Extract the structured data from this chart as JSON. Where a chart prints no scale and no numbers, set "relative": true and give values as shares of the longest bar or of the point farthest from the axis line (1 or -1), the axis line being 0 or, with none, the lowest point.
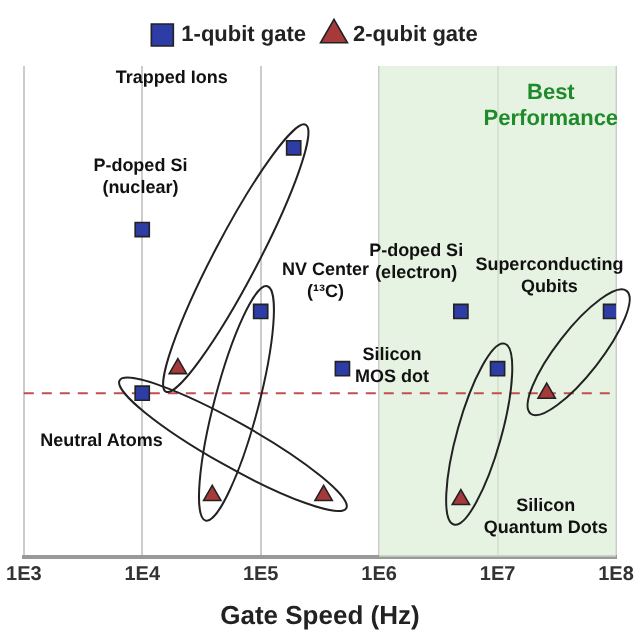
{
  "chart_data": {
    "type": "scatter",
    "relative": true,
    "xlabel": "Gate Speed (Hz)",
    "log": "x",
    "grid": "x",
    "legend": "top",
    "xlim": [
      1000,
      100000000
    ],
    "xticks": [
      {
        "value": 1000,
        "label": "1E3"
      },
      {
        "value": 10000,
        "label": "1E4"
      },
      {
        "value": 100000,
        "label": "1E5"
      },
      {
        "value": 1000000,
        "label": "1E6"
      },
      {
        "value": 10000000,
        "label": "1E7"
      },
      {
        "value": 100000000,
        "label": "1E8"
      }
    ],
    "series": [
      {
        "name": "1-qubit gate",
        "color": "#2e3da6",
        "marker": "square",
        "x": [
          190000,
          100000,
          10000,
          10000000,
          90000000,
          10000,
          490000,
          4900000
        ],
        "values": [
          1.0,
          0.6,
          0.4,
          0.46,
          0.6,
          0.8,
          0.46,
          0.6
        ]
      },
      {
        "name": "2-qubit gate",
        "color": "#a63a3a",
        "marker": "triangle",
        "x": [
          20000,
          39000,
          340000,
          4900000,
          26000000
        ],
        "values": [
          0.46,
          0.15,
          0.15,
          0.14,
          0.4
        ]
      }
    ],
    "ref_lines": [
      {
        "axis": "y",
        "value": 0.4,
        "color": "#c0504d",
        "line_style": "dashed"
      }
    ],
    "bands": [
      {
        "axis": "x",
        "from": 1000000,
        "to": 100000000,
        "label": "Best\nPerformance",
        "color": "#dbeed5"
      }
    ],
    "annotations": [
      "Trapped Ions",
      "P-doped Si\n(nuclear)",
      "NV Center\n(¹³C)",
      "P-doped Si\n(electron)",
      "Silicon\nMOS dot",
      "Superconducting\nQubits",
      "Neutral Atoms",
      "Silicon\nQuantum Dots"
    ]
  }
}
